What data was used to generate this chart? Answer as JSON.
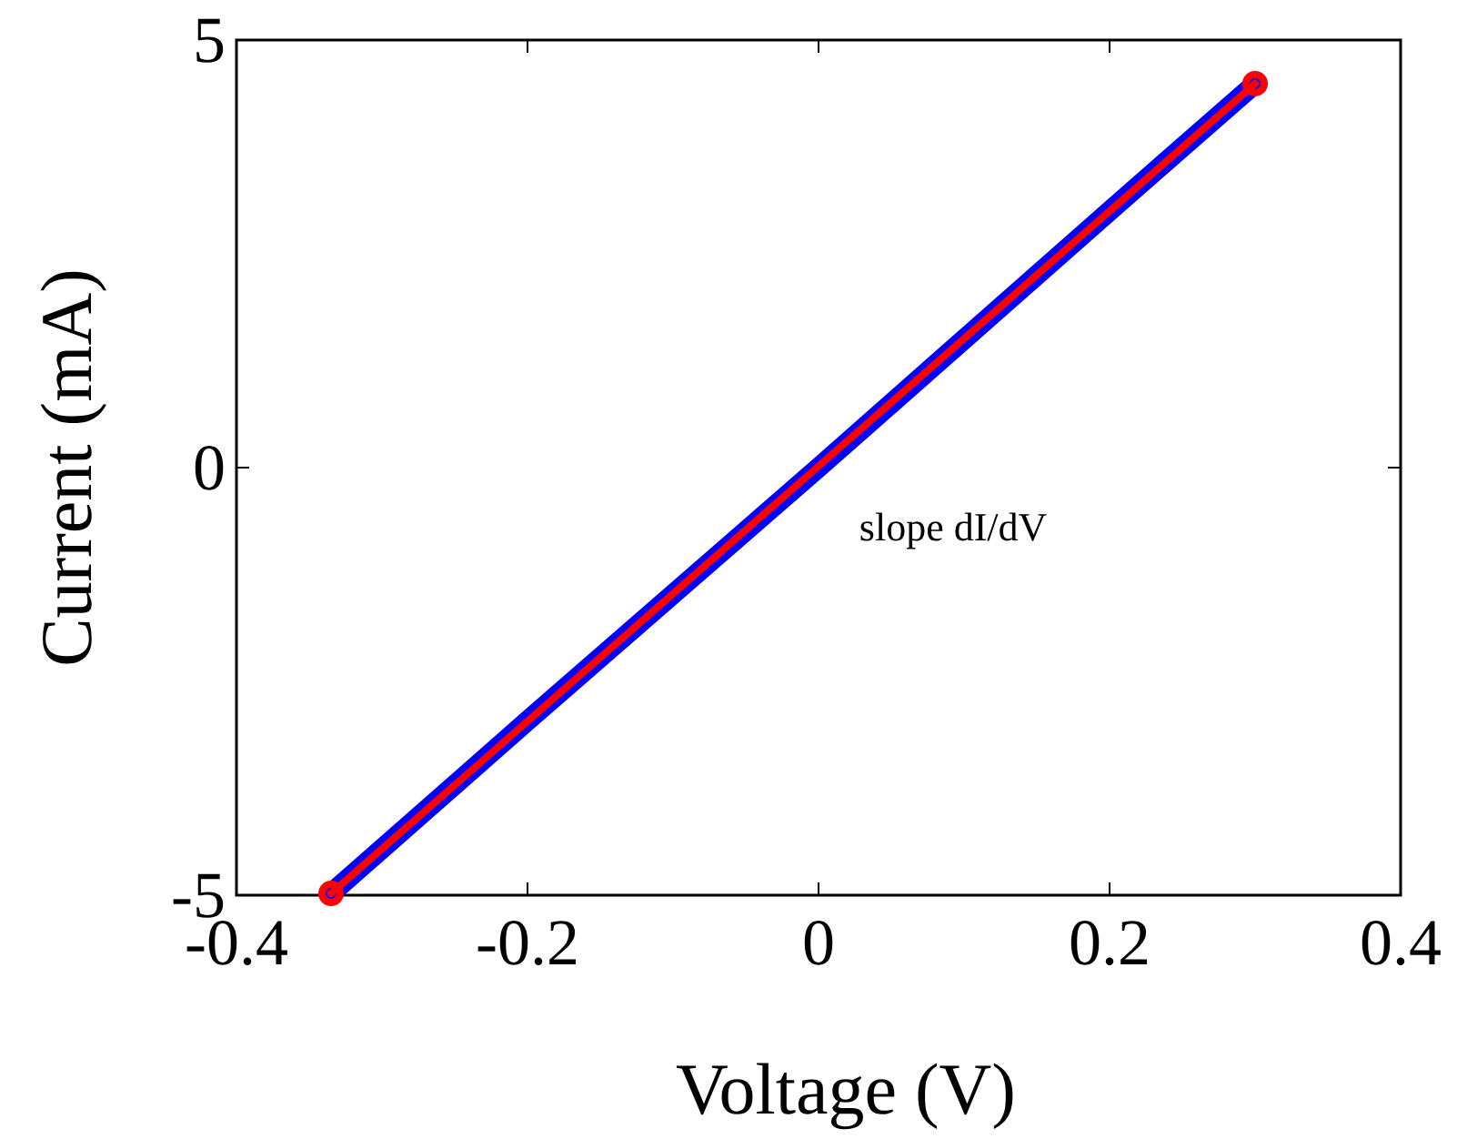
{
  "chart_data": {
    "type": "line",
    "xlabel": "Voltage (V)",
    "ylabel": "Current (mA)",
    "xlim": [
      -0.4,
      0.4
    ],
    "xticks": [
      -0.4,
      -0.2,
      0,
      0.2,
      0.4
    ],
    "ylim": [
      -5,
      5
    ],
    "yticks": [
      -5,
      0,
      5
    ],
    "annotations": [
      "slope dI/dV"
    ],
    "x": [
      -0.335,
      -0.2,
      0,
      0.2,
      0.3
    ],
    "series": [
      {
        "color": "#0000ff",
        "values": [
          -4.98,
          -2.96,
          0,
          3.0,
          4.49
        ],
        "marker": "none"
      },
      {
        "color": "#ff0000",
        "x": [
          -0.335,
          0.3
        ],
        "values": [
          -4.98,
          4.49
        ],
        "marker": "circle"
      }
    ]
  }
}
